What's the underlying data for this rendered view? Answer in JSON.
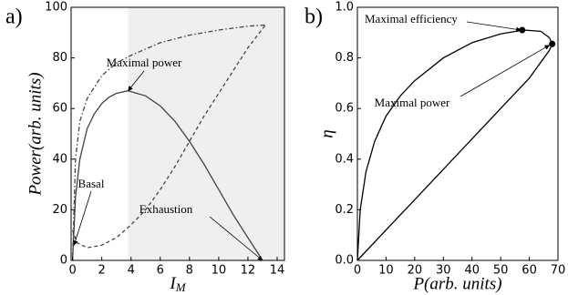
{
  "chart_data": [
    {
      "type": "line",
      "panel_label": "a)",
      "xlabel": {
        "base": "I",
        "sub": "M"
      },
      "ylabel": "Power(arb. units)",
      "xlim": [
        -0.1,
        14.5
      ],
      "ylim": [
        0,
        100
      ],
      "xticks": [
        0,
        2,
        4,
        6,
        8,
        10,
        12,
        14
      ],
      "yticks": [
        0,
        20,
        40,
        60,
        80,
        100
      ],
      "shade": [
        3.8,
        14.5
      ],
      "shade_color": "#efefef",
      "series": [
        {
          "color": "#444444",
          "style": "solid",
          "x": [
            0,
            0.2,
            0.5,
            1,
            1.5,
            2,
            2.5,
            3,
            3.8,
            5,
            6,
            7,
            8,
            9,
            10,
            11,
            12,
            13
          ],
          "values": [
            0,
            25,
            40,
            52,
            58,
            62,
            64.5,
            66,
            67,
            65,
            61,
            55,
            47,
            38,
            28,
            18,
            9,
            0
          ]
        },
        {
          "color": "#444444",
          "style": "dashdot",
          "x": [
            0,
            0.2,
            0.5,
            1,
            2,
            3,
            4,
            6,
            8,
            10,
            12,
            13.2
          ],
          "values": [
            0,
            40,
            55,
            64,
            73,
            78,
            81,
            86,
            89,
            91,
            92.5,
            93
          ]
        },
        {
          "color": "#444444",
          "style": "dashed",
          "x": [
            0,
            0.3,
            1,
            2,
            3,
            4,
            5,
            6,
            7,
            8,
            9,
            10,
            11,
            12,
            13.2
          ],
          "values": [
            12,
            7,
            5,
            6,
            9,
            14,
            20,
            28,
            37,
            47,
            57,
            66,
            75,
            84,
            93
          ]
        }
      ],
      "annotations": [
        {
          "text": "Maximal power",
          "x": 3.8,
          "y": 67
        },
        {
          "text": "Basal",
          "x": 0.1,
          "y": 6
        },
        {
          "text": "Exhaustion",
          "x": 13,
          "y": 0
        }
      ]
    },
    {
      "type": "line",
      "panel_label": "b)",
      "xlabel": "P(arb. units)",
      "ylabel": "η",
      "xlim": [
        0,
        70
      ],
      "ylim": [
        0,
        1
      ],
      "xticks": [
        0,
        10,
        20,
        30,
        40,
        50,
        60,
        70
      ],
      "yticks": [
        {
          "value": 0,
          "label": "0.0"
        },
        0.2,
        0.4,
        0.6,
        0.8,
        {
          "value": 1,
          "label": "1.0"
        }
      ],
      "series": [
        {
          "color": "#000000",
          "style": "solid",
          "x": [
            0,
            1,
            3,
            6,
            10,
            15,
            20,
            30,
            40,
            50,
            58,
            64,
            67,
            68,
            67,
            60,
            50,
            40,
            30,
            20,
            10,
            0
          ],
          "values": [
            0,
            0.2,
            0.35,
            0.47,
            0.57,
            0.65,
            0.71,
            0.8,
            0.86,
            0.895,
            0.91,
            0.905,
            0.88,
            0.855,
            0.83,
            0.72,
            0.6,
            0.48,
            0.36,
            0.24,
            0.12,
            0
          ]
        },
        {
          "color": "#000000",
          "style": "marker",
          "x": [
            57.5,
            68
          ],
          "values": [
            0.91,
            0.855
          ]
        }
      ],
      "annotations": [
        {
          "text": "Maximal efficiency",
          "x": 57,
          "y": 0.91
        },
        {
          "text": "Maximal power",
          "x": 67,
          "y": 0.85
        }
      ]
    }
  ]
}
